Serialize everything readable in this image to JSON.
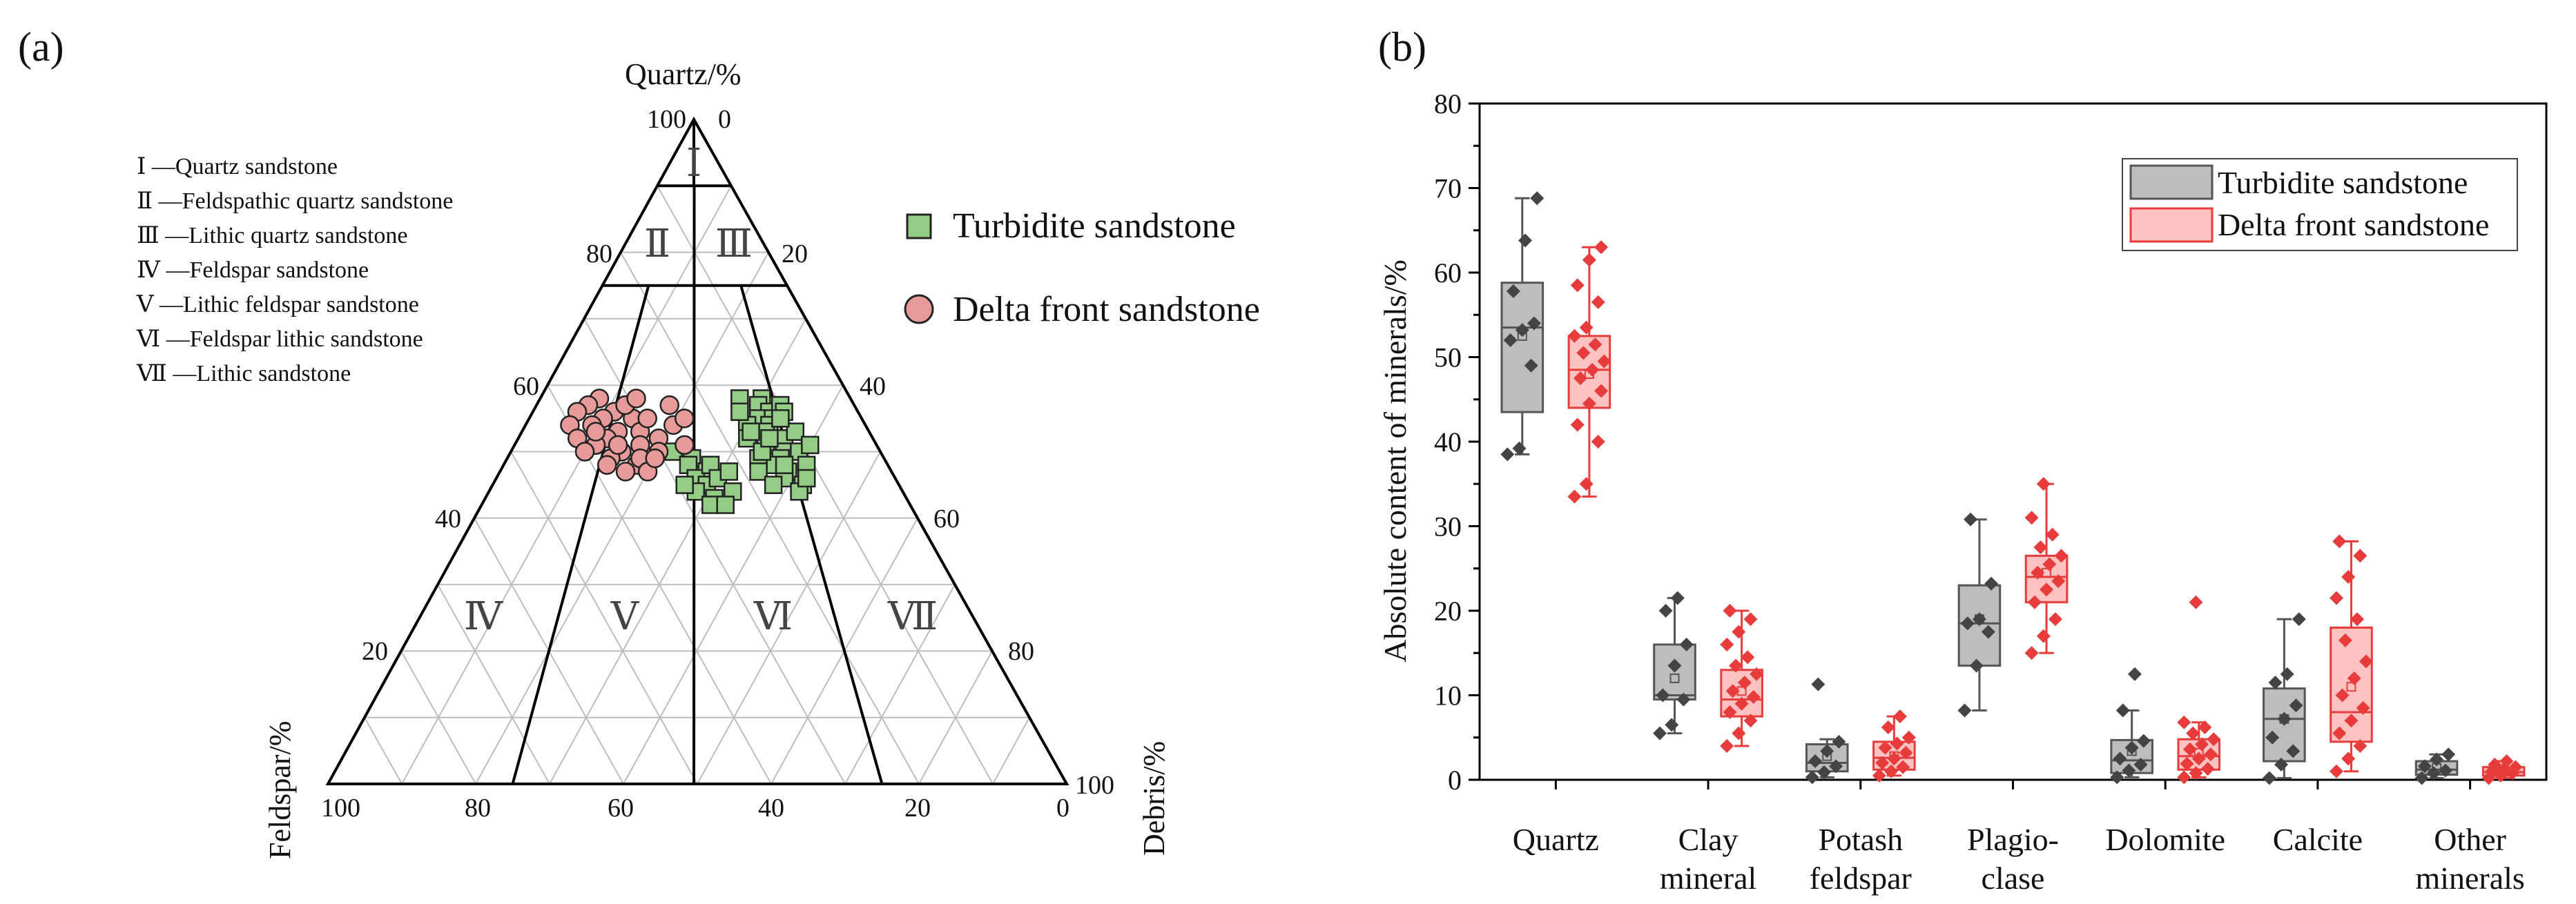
{
  "panel_a_label": "(a)",
  "panel_b_label": "(b)",
  "ternary": {
    "apex_top_label": "Quartz/%",
    "left_label": "Feldspar/%",
    "right_label": "Debris/%",
    "apex_top_ticks": [
      "100",
      "0"
    ],
    "apex_left_ticks": [
      "100"
    ],
    "apex_right_ticks": [
      "100"
    ],
    "left_side_ticks": [
      "80",
      "60",
      "40",
      "20"
    ],
    "right_side_ticks": [
      "20",
      "40",
      "60",
      "80"
    ],
    "bottom_ticks": [
      "100",
      "80",
      "60",
      "40",
      "20",
      "0"
    ],
    "zones": [
      "Ⅰ",
      "Ⅱ",
      "Ⅲ",
      "Ⅳ",
      "Ⅴ",
      "Ⅵ",
      "Ⅶ"
    ],
    "classification": [
      "Ⅰ —Quartz sandstone",
      "Ⅱ —Feldspathic quartz sandstone",
      "Ⅲ —Lithic quartz sandstone",
      "Ⅳ —Feldspar sandstone",
      "Ⅴ —Lithic feldspar sandstone",
      "Ⅵ —Feldspar lithic sandstone",
      "Ⅶ —Lithic sandstone"
    ],
    "legend": [
      "Turbidite sandstone",
      "Delta front sandstone"
    ],
    "colors": {
      "turbidite": "#93cd85",
      "delta": "#e89a9a",
      "edge": "#222222"
    },
    "points_turbidite_qfd": [
      [
        58,
        12,
        30
      ],
      [
        57,
        13,
        30
      ],
      [
        56,
        12,
        32
      ],
      [
        55,
        14,
        31
      ],
      [
        55,
        12,
        33
      ],
      [
        54,
        13,
        33
      ],
      [
        53,
        14,
        33
      ],
      [
        52,
        12,
        36
      ],
      [
        51,
        15,
        34
      ],
      [
        50,
        13,
        37
      ],
      [
        49,
        14,
        37
      ],
      [
        48,
        16,
        36
      ],
      [
        47,
        14,
        39
      ],
      [
        46,
        15,
        39
      ],
      [
        45,
        13,
        42
      ],
      [
        44,
        14,
        42
      ],
      [
        57,
        10,
        33
      ],
      [
        56,
        10,
        34
      ],
      [
        53,
        10,
        37
      ],
      [
        50,
        11,
        39
      ],
      [
        48,
        11,
        41
      ],
      [
        46,
        12,
        42
      ],
      [
        54,
        16,
        30
      ],
      [
        52,
        17,
        31
      ],
      [
        49,
        17,
        34
      ],
      [
        47,
        18,
        35
      ],
      [
        45,
        17,
        38
      ],
      [
        51,
        9,
        40
      ],
      [
        58,
        15,
        27
      ],
      [
        56,
        16,
        28
      ],
      [
        53,
        16,
        31
      ],
      [
        50,
        16,
        34
      ],
      [
        48,
        14,
        38
      ],
      [
        55,
        11,
        34
      ],
      [
        52,
        14,
        34
      ],
      [
        50,
        28,
        22
      ],
      [
        49,
        26,
        25
      ],
      [
        48,
        27,
        25
      ],
      [
        47,
        25,
        28
      ],
      [
        46,
        27,
        27
      ],
      [
        45,
        26,
        29
      ],
      [
        44,
        28,
        28
      ],
      [
        43,
        26,
        31
      ],
      [
        42,
        27,
        31
      ],
      [
        48,
        24,
        28
      ],
      [
        46,
        24,
        30
      ],
      [
        44,
        23,
        33
      ],
      [
        47,
        22,
        31
      ],
      [
        42,
        25,
        33
      ],
      [
        45,
        29,
        26
      ]
    ],
    "points_delta_qfd": [
      [
        58,
        34,
        8
      ],
      [
        57,
        36,
        7
      ],
      [
        56,
        33,
        11
      ],
      [
        55,
        35,
        10
      ],
      [
        54,
        37,
        9
      ],
      [
        53,
        34,
        13
      ],
      [
        52,
        36,
        12
      ],
      [
        51,
        38,
        11
      ],
      [
        50,
        35,
        15
      ],
      [
        49,
        37,
        14
      ],
      [
        48,
        34,
        18
      ],
      [
        47,
        36,
        17
      ],
      [
        56,
        38,
        6
      ],
      [
        55,
        31,
        14
      ],
      [
        53,
        31,
        16
      ],
      [
        51,
        32,
        17
      ],
      [
        49,
        33,
        18
      ],
      [
        47,
        33,
        20
      ],
      [
        54,
        40,
        6
      ],
      [
        52,
        40,
        8
      ],
      [
        50,
        40,
        10
      ],
      [
        48,
        38,
        14
      ],
      [
        57,
        31,
        12
      ],
      [
        58,
        29,
        13
      ],
      [
        55,
        29,
        16
      ],
      [
        52,
        29,
        19
      ],
      [
        50,
        30,
        20
      ],
      [
        53,
        37,
        10
      ],
      [
        51,
        35,
        14
      ],
      [
        49,
        31,
        20
      ],
      [
        57,
        25,
        18
      ],
      [
        54,
        26,
        20
      ],
      [
        51,
        26,
        23
      ],
      [
        55,
        24,
        21
      ]
    ]
  },
  "chart_data": {
    "type": "box",
    "title": "",
    "ylabel": "Absolute content of minerals/%",
    "xlabel": "",
    "ylim": [
      0,
      80
    ],
    "yticks": [
      "0",
      "10",
      "20",
      "30",
      "40",
      "50",
      "60",
      "70",
      "80"
    ],
    "categories": [
      [
        "Quartz"
      ],
      [
        "Clay",
        "mineral"
      ],
      [
        "Potash",
        "feldspar"
      ],
      [
        "Plagio-",
        "clase"
      ],
      [
        "Dolomite"
      ],
      [
        "Calcite"
      ],
      [
        "Other",
        "minerals"
      ]
    ],
    "series": [
      {
        "name": "Turbidite sandstone",
        "color": "#bdbdbd",
        "edge": "#555555",
        "stats": [
          {
            "min": 38.5,
            "q1": 43.5,
            "median": 53.5,
            "mean": 52.5,
            "q3": 58.8,
            "max": 68.8
          },
          {
            "min": 5.5,
            "q1": 9.5,
            "median": 10,
            "mean": 12,
            "q3": 16,
            "max": 21.5
          },
          {
            "min": 0.3,
            "q1": 1.0,
            "median": 2.0,
            "mean": 2.8,
            "q3": 4.2,
            "max": 4.8
          },
          {
            "min": 8.2,
            "q1": 13.5,
            "median": 18.5,
            "mean": 19,
            "q3": 23,
            "max": 30.8
          },
          {
            "min": 0.3,
            "q1": 0.8,
            "median": 2.3,
            "mean": 3.4,
            "q3": 4.7,
            "max": 8.2
          },
          {
            "min": 0.2,
            "q1": 2.2,
            "median": 7.2,
            "mean": 7.2,
            "q3": 10.8,
            "max": 19
          },
          {
            "min": 0.2,
            "q1": 0.6,
            "median": 1.2,
            "mean": 1.4,
            "q3": 2.2,
            "max": 3
          }
        ],
        "points": [
          [
            38.5,
            39.2,
            49,
            52,
            53.2,
            54,
            57.8,
            63.8,
            68.8
          ],
          [
            5.5,
            6.5,
            9.5,
            10,
            13.5,
            16,
            20,
            21.5
          ],
          [
            0.3,
            0.9,
            1.6,
            2.2,
            3.4,
            4.5,
            11.3
          ],
          [
            8.2,
            13.5,
            17.5,
            18.5,
            19,
            23.2,
            30.8
          ],
          [
            0.3,
            1.1,
            1.8,
            2.5,
            3.8,
            4.6,
            8.2,
            12.5
          ],
          [
            0.2,
            1.8,
            3.4,
            5,
            7.2,
            8.8,
            11.5,
            12.5,
            19
          ],
          [
            0.2,
            0.8,
            1.1,
            1.6,
            2.4,
            3
          ]
        ]
      },
      {
        "name": "Delta front sandstone",
        "color": "#ffc2c2",
        "edge": "#e83b3b",
        "stats": [
          {
            "min": 33.5,
            "q1": 44,
            "median": 48.5,
            "mean": 48,
            "q3": 52.5,
            "max": 63
          },
          {
            "min": 4,
            "q1": 7.5,
            "median": 9.5,
            "mean": 10.5,
            "q3": 13,
            "max": 20
          },
          {
            "min": 0.5,
            "q1": 1.2,
            "median": 2.6,
            "mean": 2.8,
            "q3": 4.5,
            "max": 7.5
          },
          {
            "min": 15,
            "q1": 21,
            "median": 24,
            "mean": 24.5,
            "q3": 26.5,
            "max": 35
          },
          {
            "min": 0.3,
            "q1": 1.2,
            "median": 2.8,
            "mean": 3.2,
            "q3": 4.8,
            "max": 6.8
          },
          {
            "min": 1,
            "q1": 4.5,
            "median": 8,
            "mean": 11,
            "q3": 18,
            "max": 28.2
          },
          {
            "min": 0.2,
            "q1": 0.5,
            "median": 0.9,
            "mean": 1.1,
            "q3": 1.5,
            "max": 2.2
          }
        ],
        "points": [
          [
            33.5,
            35,
            40,
            42,
            44.5,
            46,
            47.5,
            48.5,
            49.5,
            50.5,
            51.5,
            52.5,
            53.5,
            56.5,
            58.5,
            61.5,
            63
          ],
          [
            4,
            5.5,
            7,
            8,
            9,
            9.8,
            10.5,
            11.5,
            12.5,
            13.5,
            14.5,
            16,
            17.5,
            19,
            20
          ],
          [
            0.5,
            1,
            1.5,
            2,
            2.5,
            3.2,
            3.8,
            4.3,
            5,
            6.2,
            7.5
          ],
          [
            15,
            17,
            19,
            21,
            22.5,
            23.5,
            24.5,
            25.5,
            26.5,
            27.5,
            29,
            31,
            35
          ],
          [
            0.3,
            0.8,
            1.3,
            1.9,
            2.5,
            3,
            3.6,
            4.2,
            4.8,
            5.5,
            6.2,
            6.8,
            21
          ],
          [
            1,
            2.5,
            4,
            5.5,
            7,
            8.5,
            10,
            12,
            14,
            16.5,
            19,
            21.5,
            24,
            26.5,
            28.2
          ],
          [
            0.2,
            0.5,
            0.8,
            1,
            1.2,
            1.5,
            1.8,
            2.2
          ]
        ]
      }
    ],
    "legend": [
      "Turbidite sandstone",
      "Delta front sandstone"
    ],
    "legend_position": "top-right"
  }
}
